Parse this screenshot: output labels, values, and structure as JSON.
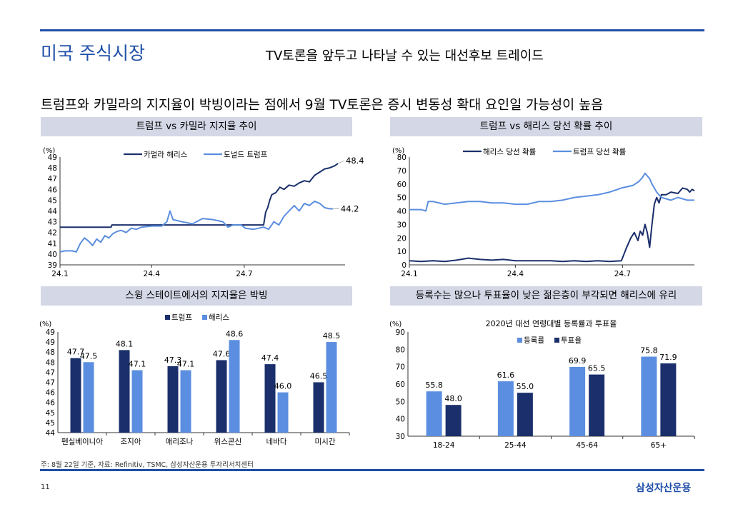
{
  "header": {
    "section_title": "미국 주식시장",
    "subtitle": "TV토론을 앞두고 나타날 수 있는 대선후보 트레이드",
    "headline": "트럼프와 카밀라의 지지율이 박빙이라는 점에서 9월 TV토론은 증시 변동성 확대 요인일 가능성이 높음"
  },
  "panels": {
    "p1_title": "트럼프 vs 카밀라 지지율 추이",
    "p2_title": "트럼프 vs 해리스 당선 확률 추이",
    "p3_title": "스윙 스테이트에서의 지지율은 박빙",
    "p4_title": "등록수는 많으나 투표율이 낮은 젊은층이 부각되면 해리스에 유리"
  },
  "footer": {
    "note": "주: 8월 22일 기준, 자료: Refinitiv, TSMC, 삼성자산운용 투자리서치센터",
    "page_number": "11",
    "brand": "삼성자산운용"
  },
  "colors": {
    "accent": "#1f4fa8",
    "dark_navy": "#1a2f6b",
    "light_blue": "#5b8ee0",
    "panel_bg": "#d4d7e6"
  },
  "chart_data": [
    {
      "type": "line",
      "unit": "(%)",
      "ylim": [
        39,
        49
      ],
      "yticks": [
        39,
        40,
        41,
        42,
        43,
        44,
        45,
        46,
        47,
        48,
        49
      ],
      "x_tick_labels": [
        "24.1",
        "24.4",
        "24.7"
      ],
      "x_ticks": [
        0,
        90,
        181
      ],
      "xlim": [
        0,
        280
      ],
      "series": [
        {
          "name": "카멀라 해리스",
          "color": "#1a2f6b",
          "end_label": "48.4",
          "points": [
            [
              0,
              42.5
            ],
            [
              50,
              42.5
            ],
            [
              51,
              42.7
            ],
            [
              100,
              42.7
            ],
            [
              150,
              42.7
            ],
            [
              200,
              42.7
            ],
            [
              202,
              43.9
            ],
            [
              204,
              44.3
            ],
            [
              206,
              45.0
            ],
            [
              208,
              45.5
            ],
            [
              212,
              45.7
            ],
            [
              216,
              46.2
            ],
            [
              220,
              46.0
            ],
            [
              225,
              46.4
            ],
            [
              230,
              46.3
            ],
            [
              235,
              46.6
            ],
            [
              240,
              46.8
            ],
            [
              245,
              46.7
            ],
            [
              250,
              47.3
            ],
            [
              255,
              47.6
            ],
            [
              260,
              47.9
            ],
            [
              265,
              48.0
            ],
            [
              270,
              48.2
            ],
            [
              273,
              48.4
            ]
          ]
        },
        {
          "name": "도널드 트럼프",
          "color": "#5b8ee0",
          "end_label": "44.2",
          "points": [
            [
              0,
              40.2
            ],
            [
              5,
              40.3
            ],
            [
              12,
              40.3
            ],
            [
              16,
              40.2
            ],
            [
              20,
              41.0
            ],
            [
              24,
              41.5
            ],
            [
              28,
              41.2
            ],
            [
              32,
              40.8
            ],
            [
              36,
              41.4
            ],
            [
              40,
              41.1
            ],
            [
              44,
              41.7
            ],
            [
              48,
              41.5
            ],
            [
              52,
              41.9
            ],
            [
              56,
              42.1
            ],
            [
              60,
              42.2
            ],
            [
              65,
              42.0
            ],
            [
              70,
              42.4
            ],
            [
              75,
              42.3
            ],
            [
              80,
              42.5
            ],
            [
              90,
              42.6
            ],
            [
              100,
              42.6
            ],
            [
              105,
              43.0
            ],
            [
              108,
              44.0
            ],
            [
              111,
              43.2
            ],
            [
              120,
              43.0
            ],
            [
              130,
              42.8
            ],
            [
              140,
              43.3
            ],
            [
              150,
              43.2
            ],
            [
              160,
              43.0
            ],
            [
              165,
              42.5
            ],
            [
              170,
              42.7
            ],
            [
              178,
              42.7
            ],
            [
              182,
              42.4
            ],
            [
              190,
              42.3
            ],
            [
              200,
              42.5
            ],
            [
              205,
              42.3
            ],
            [
              210,
              43.0
            ],
            [
              215,
              42.7
            ],
            [
              220,
              43.5
            ],
            [
              225,
              44.0
            ],
            [
              230,
              44.5
            ],
            [
              235,
              44.0
            ],
            [
              240,
              44.7
            ],
            [
              245,
              44.5
            ],
            [
              250,
              44.9
            ],
            [
              255,
              44.7
            ],
            [
              260,
              44.3
            ],
            [
              265,
              44.2
            ],
            [
              268,
              44.2
            ]
          ]
        }
      ]
    },
    {
      "type": "line",
      "unit": "(%)",
      "ylim": [
        0,
        80
      ],
      "yticks": [
        0,
        10,
        20,
        30,
        40,
        50,
        60,
        70,
        80
      ],
      "x_tick_labels": [
        "24.1",
        "24.4",
        "24.7"
      ],
      "x_ticks": [
        0,
        90,
        181
      ],
      "xlim": [
        0,
        242
      ],
      "series": [
        {
          "name": "해리스 당선 확률",
          "color": "#1a2f6b",
          "points": [
            [
              0,
              3
            ],
            [
              10,
              2.5
            ],
            [
              20,
              3
            ],
            [
              30,
              2.5
            ],
            [
              40,
              3.5
            ],
            [
              50,
              5
            ],
            [
              60,
              4
            ],
            [
              70,
              3.5
            ],
            [
              80,
              4
            ],
            [
              90,
              3
            ],
            [
              100,
              3
            ],
            [
              110,
              3
            ],
            [
              120,
              3
            ],
            [
              130,
              2.5
            ],
            [
              140,
              3
            ],
            [
              150,
              2.5
            ],
            [
              160,
              3
            ],
            [
              170,
              2.5
            ],
            [
              180,
              3
            ],
            [
              184,
              12
            ],
            [
              188,
              20
            ],
            [
              191,
              24
            ],
            [
              194,
              18
            ],
            [
              196,
              25
            ],
            [
              198,
              22
            ],
            [
              200,
              30
            ],
            [
              202,
              24
            ],
            [
              204,
              13
            ],
            [
              206,
              30
            ],
            [
              208,
              45
            ],
            [
              210,
              50
            ],
            [
              212,
              46
            ],
            [
              214,
              52
            ],
            [
              218,
              52
            ],
            [
              222,
              54
            ],
            [
              228,
              53
            ],
            [
              232,
              57
            ],
            [
              236,
              56
            ],
            [
              238,
              54
            ],
            [
              240,
              56
            ],
            [
              242,
              55
            ]
          ]
        },
        {
          "name": "트럼프 당선 확률",
          "color": "#5b8ee0",
          "points": [
            [
              0,
              41
            ],
            [
              10,
              41
            ],
            [
              14,
              40
            ],
            [
              16,
              47
            ],
            [
              20,
              47
            ],
            [
              30,
              45
            ],
            [
              40,
              46
            ],
            [
              50,
              47
            ],
            [
              60,
              47
            ],
            [
              70,
              46
            ],
            [
              80,
              46
            ],
            [
              90,
              45
            ],
            [
              100,
              45
            ],
            [
              110,
              47
            ],
            [
              120,
              47
            ],
            [
              130,
              48
            ],
            [
              140,
              50
            ],
            [
              150,
              51
            ],
            [
              160,
              52
            ],
            [
              170,
              54
            ],
            [
              180,
              57
            ],
            [
              190,
              59
            ],
            [
              195,
              62
            ],
            [
              198,
              65
            ],
            [
              200,
              68
            ],
            [
              202,
              66
            ],
            [
              204,
              64
            ],
            [
              206,
              60
            ],
            [
              210,
              54
            ],
            [
              214,
              50
            ],
            [
              218,
              49
            ],
            [
              222,
              48
            ],
            [
              228,
              50
            ],
            [
              232,
              49
            ],
            [
              236,
              48
            ],
            [
              242,
              48
            ]
          ]
        }
      ]
    },
    {
      "type": "bar",
      "unit": "(%)",
      "ylim": [
        44,
        49
      ],
      "ytick_labels": [
        "44",
        "45",
        "45",
        "46",
        "46",
        "47",
        "47",
        "48",
        "48",
        "49",
        "49"
      ],
      "categories": [
        "펜실베이니아",
        "조지아",
        "애리조나",
        "위스콘신",
        "네바다",
        "미시간"
      ],
      "series": [
        {
          "name": "트럼프",
          "color": "#1a2f6b",
          "values": [
            47.7,
            48.1,
            47.3,
            47.6,
            47.4,
            46.5
          ]
        },
        {
          "name": "해리스",
          "color": "#5b8ee0",
          "values": [
            47.5,
            47.1,
            47.1,
            48.6,
            46.0,
            48.5
          ]
        }
      ]
    },
    {
      "type": "bar",
      "title": "2020년 대선 연령대별 등록률과 투표율",
      "unit": "(%)",
      "ylim": [
        30,
        90
      ],
      "yticks": [
        30,
        40,
        50,
        60,
        70,
        80,
        90
      ],
      "categories": [
        "18-24",
        "25-44",
        "45-64",
        "65+"
      ],
      "series": [
        {
          "name": "등록률",
          "color": "#5b8ee0",
          "values": [
            55.8,
            61.6,
            69.9,
            75.8
          ]
        },
        {
          "name": "투표율",
          "color": "#1a2f6b",
          "values": [
            48.0,
            55.0,
            65.5,
            71.9
          ]
        }
      ]
    }
  ]
}
